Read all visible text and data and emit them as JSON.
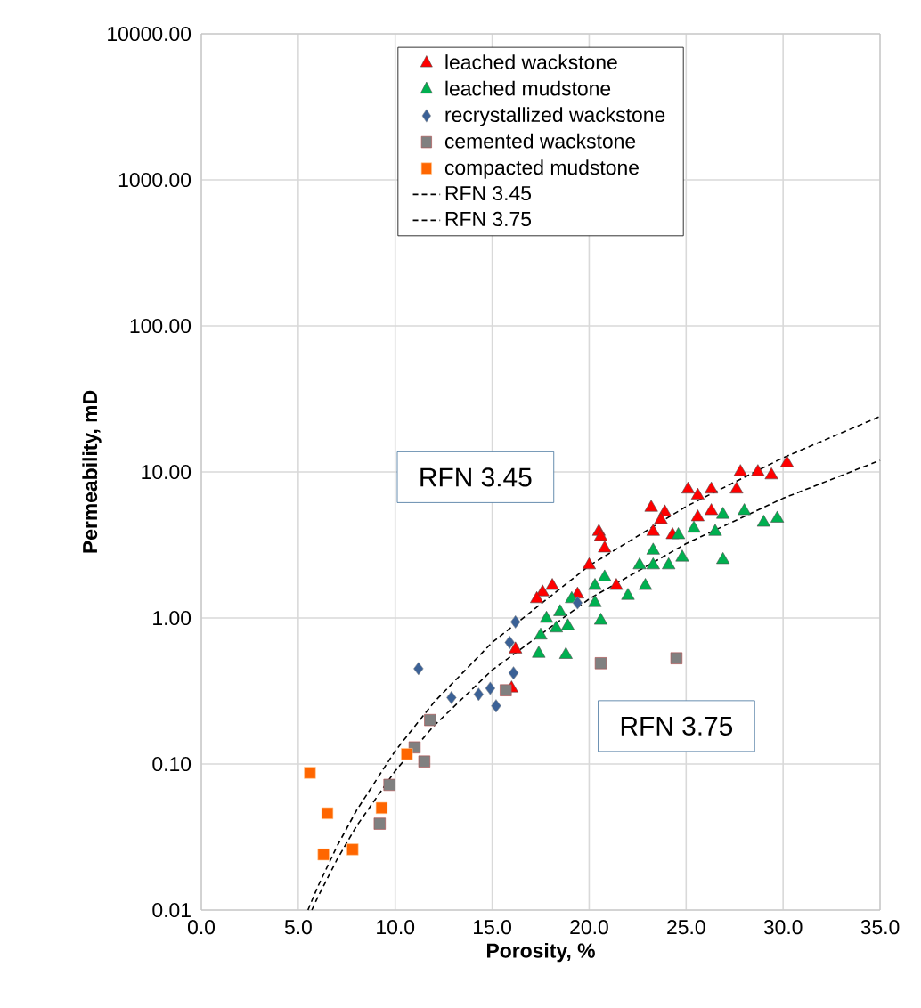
{
  "chart_data": {
    "type": "scatter",
    "xlabel": "Porosity, %",
    "ylabel": "Permeability, mD",
    "xlim": [
      0,
      35
    ],
    "ylim": [
      0.01,
      10000
    ],
    "log": "y",
    "grid": true,
    "legend": "top",
    "xticks": [
      {
        "value": 0,
        "label": "0.0"
      },
      {
        "value": 5,
        "label": "5.0"
      },
      {
        "value": 10,
        "label": "10.0"
      },
      {
        "value": 15,
        "label": "15.0"
      },
      {
        "value": 20,
        "label": "20.0"
      },
      {
        "value": 25,
        "label": "25.0"
      },
      {
        "value": 30,
        "label": "30.0"
      },
      {
        "value": 35,
        "label": "35.0"
      }
    ],
    "yticks": [
      {
        "value": 0.01,
        "label": "0.01"
      },
      {
        "value": 0.1,
        "label": "0.10"
      },
      {
        "value": 1,
        "label": "1.00"
      },
      {
        "value": 10,
        "label": "10.00"
      },
      {
        "value": 100,
        "label": "100.00"
      },
      {
        "value": 1000,
        "label": "1000.00"
      },
      {
        "value": 10000,
        "label": "10000.00"
      }
    ],
    "series": [
      {
        "name": "leached wackstone",
        "color": "#ff0000",
        "marker": "triangle",
        "x": [
          30.2,
          28.7,
          27.8,
          29.4,
          27.6,
          25.1,
          26.3,
          25.6,
          23.2,
          23.9,
          23.7,
          25.6,
          26.3,
          20.5,
          20.6,
          23.3,
          24.3,
          20.8,
          20.0,
          21.4,
          17.6,
          18.1,
          17.3,
          19.4,
          16.2,
          16.0
        ],
        "values": [
          11.5,
          10,
          10,
          9.5,
          7.6,
          7.6,
          7.6,
          6.9,
          5.7,
          5.3,
          4.7,
          4.9,
          5.4,
          3.9,
          3.6,
          3.9,
          3.7,
          3.0,
          2.3,
          1.66,
          1.5,
          1.66,
          1.35,
          1.45,
          0.61,
          0.33
        ]
      },
      {
        "name": "leached mudstone",
        "color": "#00b050",
        "marker": "triangle",
        "x": [
          29.7,
          29.0,
          28.0,
          26.9,
          26.5,
          25.4,
          24.6,
          24.8,
          26.9,
          24.1,
          23.3,
          22.6,
          23.3,
          22.9,
          22.0,
          20.8,
          20.3,
          20.3,
          20.6,
          18.5,
          17.8,
          18.3,
          18.9,
          17.5,
          17.4,
          18.8,
          19.1
        ],
        "values": [
          4.8,
          4.5,
          5.4,
          5.1,
          3.9,
          4.1,
          3.7,
          2.6,
          2.5,
          2.3,
          2.9,
          2.3,
          2.3,
          1.66,
          1.42,
          1.9,
          1.66,
          1.27,
          0.96,
          1.1,
          0.99,
          0.85,
          0.88,
          0.76,
          0.57,
          0.56,
          1.35
        ]
      },
      {
        "name": "recrystallized wackstone",
        "color": "#3b6196",
        "marker": "diamond",
        "x": [
          19.4,
          16.2,
          15.9,
          16.1,
          15.2,
          14.3,
          14.9,
          12.9,
          11.2
        ],
        "values": [
          1.27,
          0.94,
          0.68,
          0.42,
          0.25,
          0.3,
          0.33,
          0.285,
          0.45
        ]
      },
      {
        "name": "cemented wackstone",
        "color": "#808080",
        "marker": "square",
        "x": [
          20.6,
          24.5,
          15.7,
          11.8,
          11.0,
          11.5,
          9.7,
          9.2
        ],
        "values": [
          0.49,
          0.53,
          0.32,
          0.2,
          0.13,
          0.104,
          0.072,
          0.039
        ]
      },
      {
        "name": "compacted mudstone",
        "color": "#ff6600",
        "marker": "square",
        "x": [
          5.6,
          6.5,
          6.3,
          7.8,
          9.3,
          10.6
        ],
        "values": [
          0.087,
          0.046,
          0.024,
          0.026,
          0.05,
          0.117
        ]
      },
      {
        "name": "RFN 3.45",
        "type": "line",
        "color": "#000000",
        "line_style": "dashed",
        "marker": "none",
        "x": [
          5.5,
          6,
          7,
          8,
          10,
          12,
          15,
          20,
          25,
          30,
          35
        ],
        "values": [
          0.01,
          0.0144,
          0.0274,
          0.048,
          0.123,
          0.265,
          0.68,
          2.28,
          5.8,
          12.5,
          24
        ]
      },
      {
        "name": "RFN 3.75",
        "type": "line",
        "color": "#000000",
        "line_style": "dashed",
        "marker": "none",
        "x": [
          5.7,
          6,
          7,
          8,
          10,
          12,
          15,
          20,
          25,
          30,
          35
        ],
        "values": [
          0.01,
          0.0122,
          0.0222,
          0.0375,
          0.0897,
          0.183,
          0.44,
          1.35,
          3.23,
          6.6,
          12.0
        ]
      }
    ],
    "annotations": [
      "RFN 3.45",
      "RFN 3.75"
    ]
  }
}
